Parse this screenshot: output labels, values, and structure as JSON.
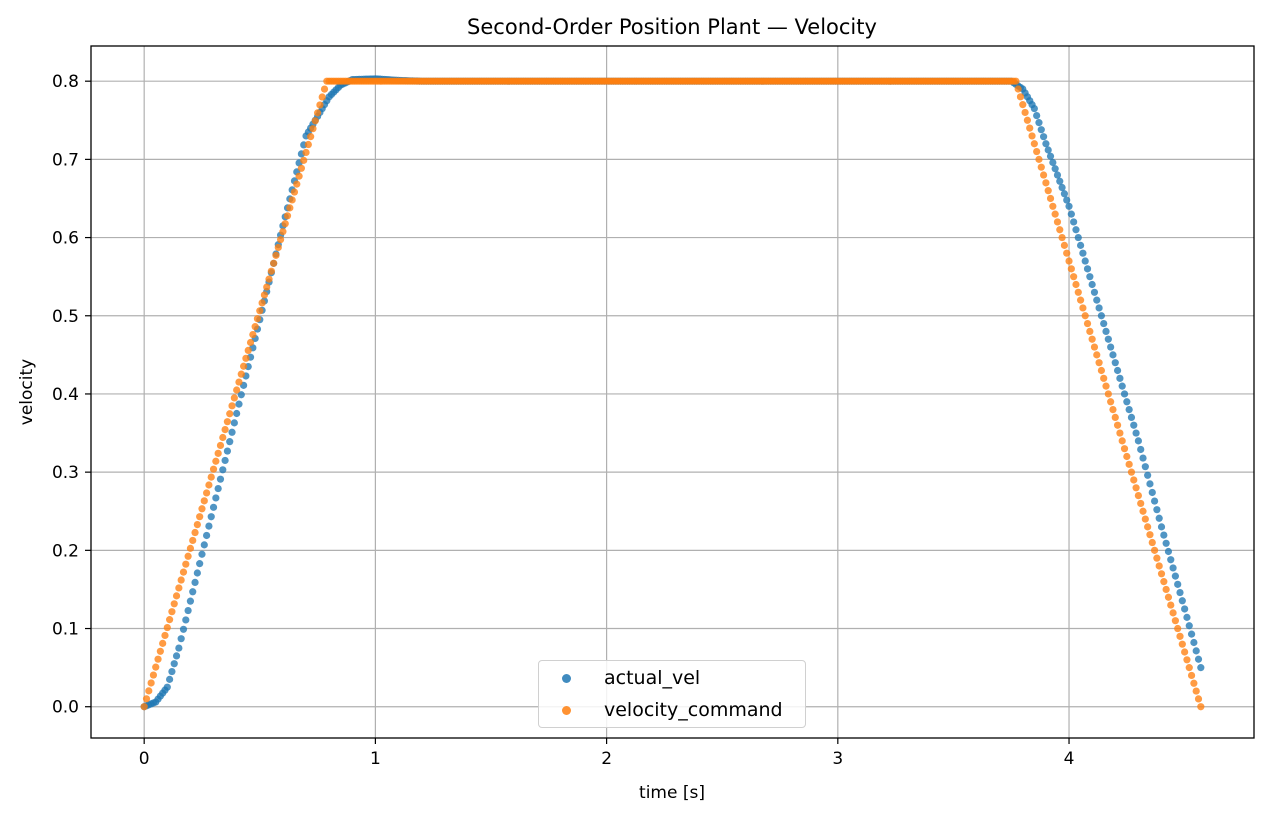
{
  "chart_data": {
    "type": "scatter",
    "title": "Second-Order Position Plant — Velocity",
    "xlabel": "time [s]",
    "ylabel": "velocity",
    "xlim": [
      -0.23,
      4.8
    ],
    "ylim": [
      -0.04,
      0.845
    ],
    "grid": true,
    "legend_position": "bottom-center",
    "x_ticks": [
      "0",
      "1",
      "2",
      "3",
      "4"
    ],
    "x_tick_values": [
      0,
      1,
      2,
      3,
      4
    ],
    "y_ticks": [
      "0.0",
      "0.1",
      "0.2",
      "0.3",
      "0.4",
      "0.5",
      "0.6",
      "0.7",
      "0.8"
    ],
    "y_tick_values": [
      0.0,
      0.1,
      0.2,
      0.3,
      0.4,
      0.5,
      0.6,
      0.7,
      0.8
    ],
    "series": [
      {
        "name": "actual_vel",
        "color": "#1f77b4",
        "points": [
          [
            0.0,
            0.0
          ],
          [
            0.05,
            0.006
          ],
          [
            0.1,
            0.025
          ],
          [
            0.15,
            0.075
          ],
          [
            0.2,
            0.135
          ],
          [
            0.3,
            0.255
          ],
          [
            0.4,
            0.375
          ],
          [
            0.5,
            0.495
          ],
          [
            0.6,
            0.615
          ],
          [
            0.7,
            0.73
          ],
          [
            0.8,
            0.78
          ],
          [
            0.85,
            0.795
          ],
          [
            0.9,
            0.802
          ],
          [
            1.0,
            0.803
          ],
          [
            1.1,
            0.801
          ],
          [
            1.2,
            0.8
          ],
          [
            1.5,
            0.8
          ],
          [
            2.0,
            0.8
          ],
          [
            2.5,
            0.8
          ],
          [
            3.0,
            0.8
          ],
          [
            3.5,
            0.8
          ],
          [
            3.75,
            0.8
          ],
          [
            3.8,
            0.79
          ],
          [
            3.85,
            0.765
          ],
          [
            3.9,
            0.72
          ],
          [
            4.0,
            0.64
          ],
          [
            4.1,
            0.54
          ],
          [
            4.2,
            0.44
          ],
          [
            4.3,
            0.34
          ],
          [
            4.4,
            0.23
          ],
          [
            4.5,
            0.125
          ],
          [
            4.57,
            0.05
          ]
        ]
      },
      {
        "name": "velocity_command",
        "color": "#ff7f0e",
        "points": [
          [
            0.0,
            0.0
          ],
          [
            0.79,
            0.8
          ],
          [
            3.77,
            0.8
          ],
          [
            4.57,
            0.0
          ]
        ]
      }
    ]
  }
}
